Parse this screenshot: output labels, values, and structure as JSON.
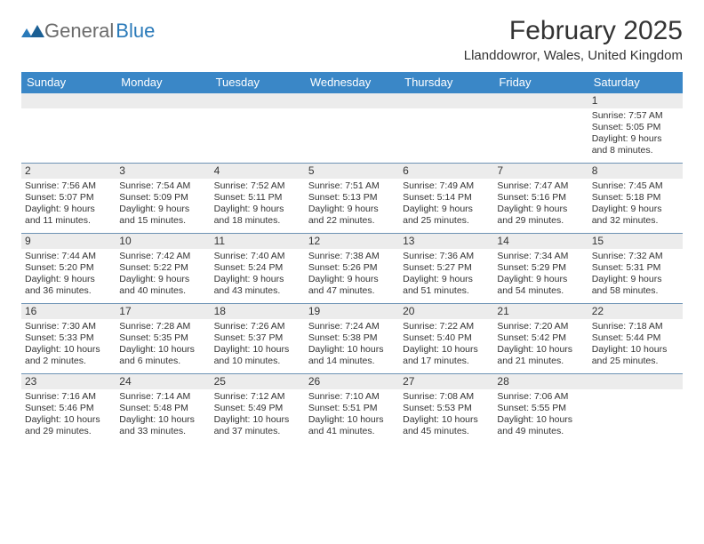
{
  "logo": {
    "g": "General",
    "b": "Blue"
  },
  "title": "February 2025",
  "location": "Llanddowror, Wales, United Kingdom",
  "colors": {
    "header_bg": "#3a87c7",
    "daynum_bg": "#ececec",
    "rule": "#6e93b5",
    "text": "#333333",
    "logo_gray": "#6b6b6b",
    "logo_blue": "#2a7ab9"
  },
  "weekdays": [
    "Sunday",
    "Monday",
    "Tuesday",
    "Wednesday",
    "Thursday",
    "Friday",
    "Saturday"
  ],
  "weeks": [
    [
      {
        "n": "",
        "sr": "",
        "ss": "",
        "dl": ""
      },
      {
        "n": "",
        "sr": "",
        "ss": "",
        "dl": ""
      },
      {
        "n": "",
        "sr": "",
        "ss": "",
        "dl": ""
      },
      {
        "n": "",
        "sr": "",
        "ss": "",
        "dl": ""
      },
      {
        "n": "",
        "sr": "",
        "ss": "",
        "dl": ""
      },
      {
        "n": "",
        "sr": "",
        "ss": "",
        "dl": ""
      },
      {
        "n": "1",
        "sr": "Sunrise: 7:57 AM",
        "ss": "Sunset: 5:05 PM",
        "dl": "Daylight: 9 hours and 8 minutes."
      }
    ],
    [
      {
        "n": "2",
        "sr": "Sunrise: 7:56 AM",
        "ss": "Sunset: 5:07 PM",
        "dl": "Daylight: 9 hours and 11 minutes."
      },
      {
        "n": "3",
        "sr": "Sunrise: 7:54 AM",
        "ss": "Sunset: 5:09 PM",
        "dl": "Daylight: 9 hours and 15 minutes."
      },
      {
        "n": "4",
        "sr": "Sunrise: 7:52 AM",
        "ss": "Sunset: 5:11 PM",
        "dl": "Daylight: 9 hours and 18 minutes."
      },
      {
        "n": "5",
        "sr": "Sunrise: 7:51 AM",
        "ss": "Sunset: 5:13 PM",
        "dl": "Daylight: 9 hours and 22 minutes."
      },
      {
        "n": "6",
        "sr": "Sunrise: 7:49 AM",
        "ss": "Sunset: 5:14 PM",
        "dl": "Daylight: 9 hours and 25 minutes."
      },
      {
        "n": "7",
        "sr": "Sunrise: 7:47 AM",
        "ss": "Sunset: 5:16 PM",
        "dl": "Daylight: 9 hours and 29 minutes."
      },
      {
        "n": "8",
        "sr": "Sunrise: 7:45 AM",
        "ss": "Sunset: 5:18 PM",
        "dl": "Daylight: 9 hours and 32 minutes."
      }
    ],
    [
      {
        "n": "9",
        "sr": "Sunrise: 7:44 AM",
        "ss": "Sunset: 5:20 PM",
        "dl": "Daylight: 9 hours and 36 minutes."
      },
      {
        "n": "10",
        "sr": "Sunrise: 7:42 AM",
        "ss": "Sunset: 5:22 PM",
        "dl": "Daylight: 9 hours and 40 minutes."
      },
      {
        "n": "11",
        "sr": "Sunrise: 7:40 AM",
        "ss": "Sunset: 5:24 PM",
        "dl": "Daylight: 9 hours and 43 minutes."
      },
      {
        "n": "12",
        "sr": "Sunrise: 7:38 AM",
        "ss": "Sunset: 5:26 PM",
        "dl": "Daylight: 9 hours and 47 minutes."
      },
      {
        "n": "13",
        "sr": "Sunrise: 7:36 AM",
        "ss": "Sunset: 5:27 PM",
        "dl": "Daylight: 9 hours and 51 minutes."
      },
      {
        "n": "14",
        "sr": "Sunrise: 7:34 AM",
        "ss": "Sunset: 5:29 PM",
        "dl": "Daylight: 9 hours and 54 minutes."
      },
      {
        "n": "15",
        "sr": "Sunrise: 7:32 AM",
        "ss": "Sunset: 5:31 PM",
        "dl": "Daylight: 9 hours and 58 minutes."
      }
    ],
    [
      {
        "n": "16",
        "sr": "Sunrise: 7:30 AM",
        "ss": "Sunset: 5:33 PM",
        "dl": "Daylight: 10 hours and 2 minutes."
      },
      {
        "n": "17",
        "sr": "Sunrise: 7:28 AM",
        "ss": "Sunset: 5:35 PM",
        "dl": "Daylight: 10 hours and 6 minutes."
      },
      {
        "n": "18",
        "sr": "Sunrise: 7:26 AM",
        "ss": "Sunset: 5:37 PM",
        "dl": "Daylight: 10 hours and 10 minutes."
      },
      {
        "n": "19",
        "sr": "Sunrise: 7:24 AM",
        "ss": "Sunset: 5:38 PM",
        "dl": "Daylight: 10 hours and 14 minutes."
      },
      {
        "n": "20",
        "sr": "Sunrise: 7:22 AM",
        "ss": "Sunset: 5:40 PM",
        "dl": "Daylight: 10 hours and 17 minutes."
      },
      {
        "n": "21",
        "sr": "Sunrise: 7:20 AM",
        "ss": "Sunset: 5:42 PM",
        "dl": "Daylight: 10 hours and 21 minutes."
      },
      {
        "n": "22",
        "sr": "Sunrise: 7:18 AM",
        "ss": "Sunset: 5:44 PM",
        "dl": "Daylight: 10 hours and 25 minutes."
      }
    ],
    [
      {
        "n": "23",
        "sr": "Sunrise: 7:16 AM",
        "ss": "Sunset: 5:46 PM",
        "dl": "Daylight: 10 hours and 29 minutes."
      },
      {
        "n": "24",
        "sr": "Sunrise: 7:14 AM",
        "ss": "Sunset: 5:48 PM",
        "dl": "Daylight: 10 hours and 33 minutes."
      },
      {
        "n": "25",
        "sr": "Sunrise: 7:12 AM",
        "ss": "Sunset: 5:49 PM",
        "dl": "Daylight: 10 hours and 37 minutes."
      },
      {
        "n": "26",
        "sr": "Sunrise: 7:10 AM",
        "ss": "Sunset: 5:51 PM",
        "dl": "Daylight: 10 hours and 41 minutes."
      },
      {
        "n": "27",
        "sr": "Sunrise: 7:08 AM",
        "ss": "Sunset: 5:53 PM",
        "dl": "Daylight: 10 hours and 45 minutes."
      },
      {
        "n": "28",
        "sr": "Sunrise: 7:06 AM",
        "ss": "Sunset: 5:55 PM",
        "dl": "Daylight: 10 hours and 49 minutes."
      },
      {
        "n": "",
        "sr": "",
        "ss": "",
        "dl": ""
      }
    ]
  ]
}
